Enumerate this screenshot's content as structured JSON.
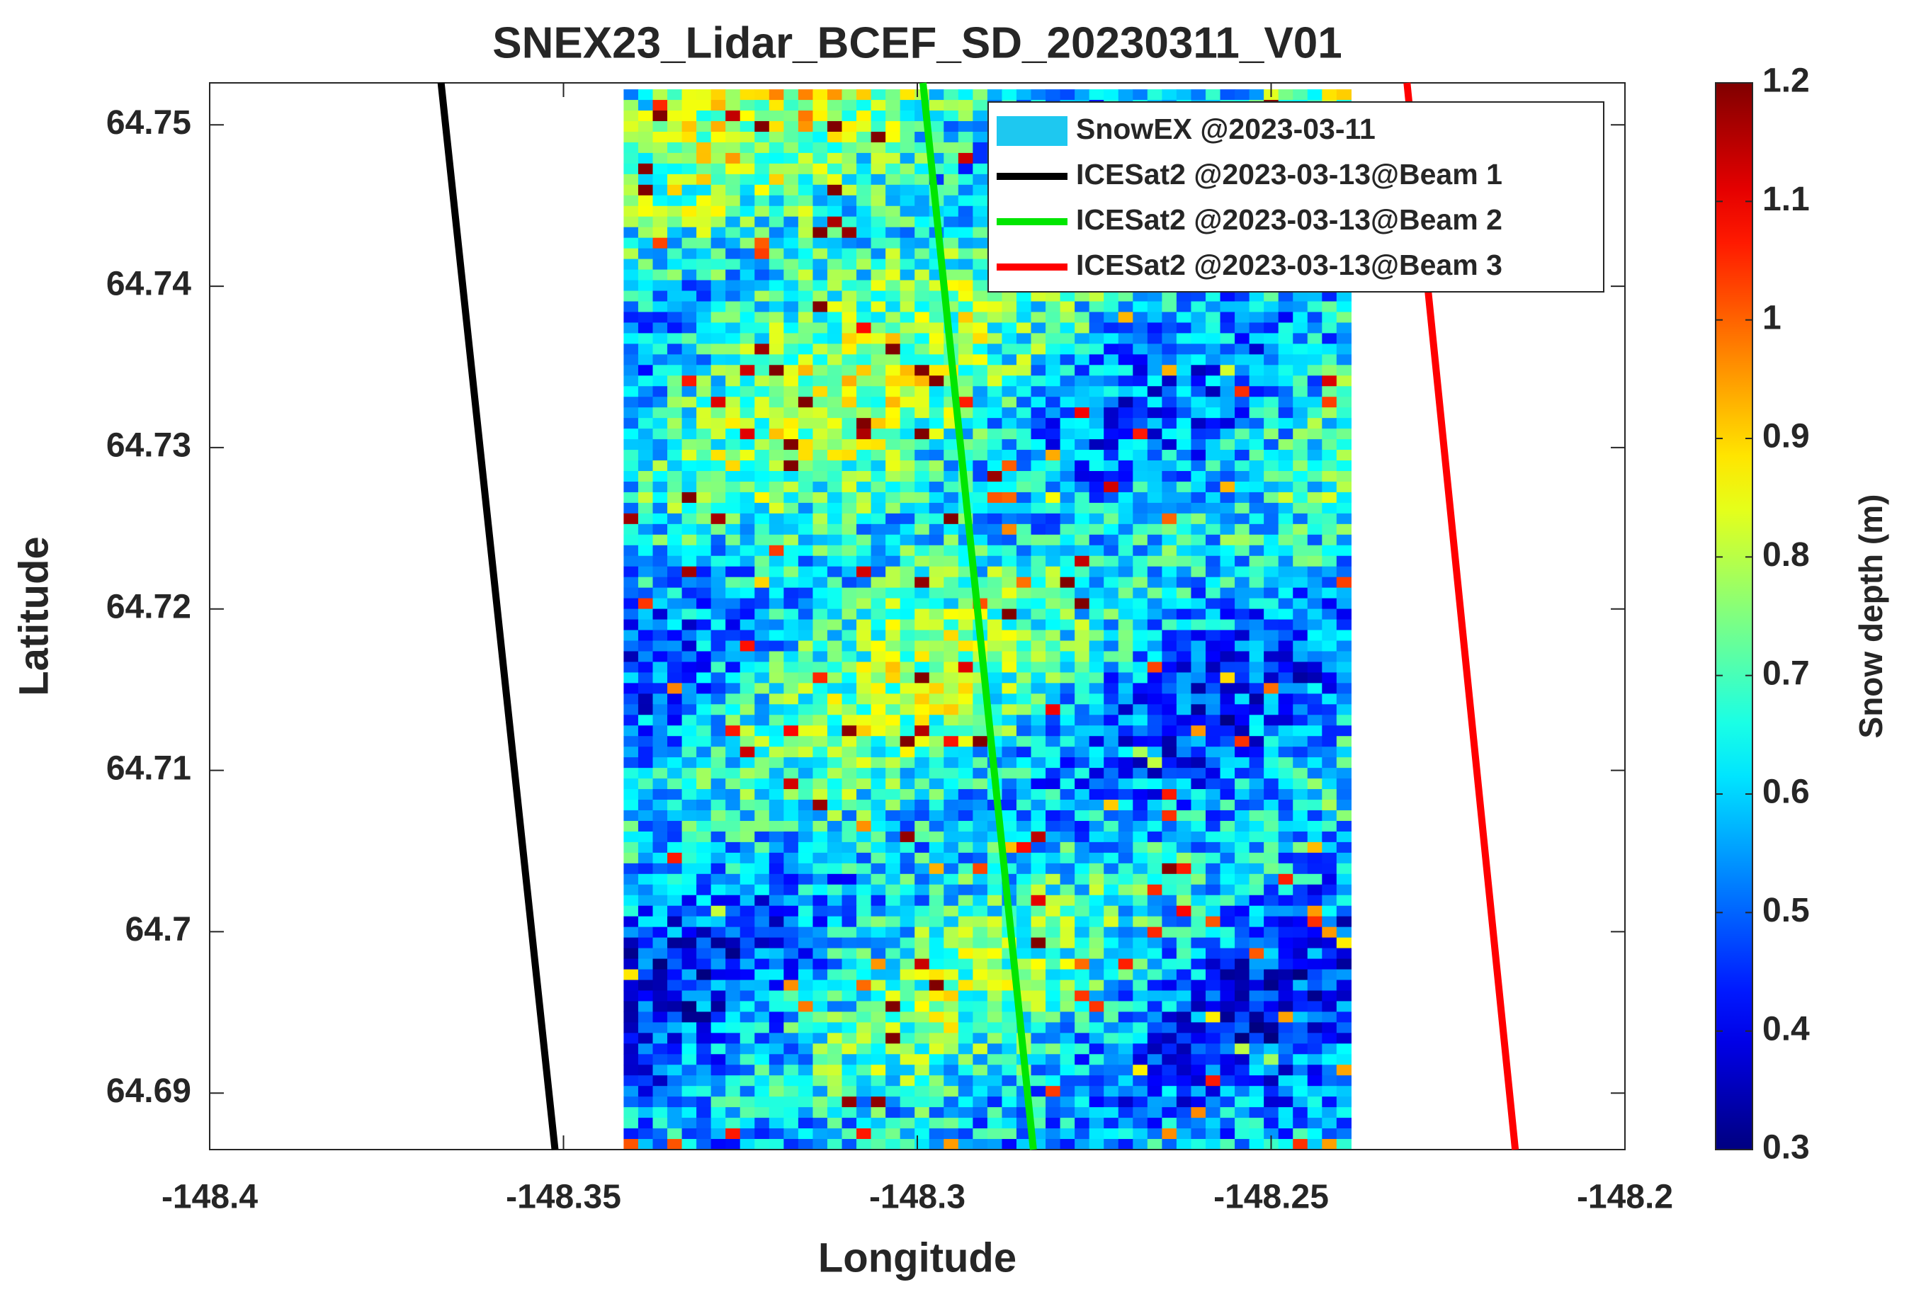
{
  "chart_data": {
    "type": "line",
    "title": "SNEX23_Lidar_BCEF_SD_20230311_V01",
    "x_label": "Longitude",
    "y_label": "Latitude",
    "xlim": [
      -148.4,
      -148.2
    ],
    "xticks": [
      -148.4,
      -148.35,
      -148.3,
      -148.25,
      -148.2
    ],
    "ylim": [
      64.6865,
      64.7526
    ],
    "yticks": [
      64.69,
      64.7,
      64.71,
      64.72,
      64.73,
      64.74,
      64.75
    ],
    "raster": {
      "name": "SnowEX @2023-03-11",
      "color": "#1ec8f0",
      "xlim": [
        -148.3415,
        -148.2387
      ],
      "ylim": [
        64.6865,
        64.7522
      ]
    },
    "series": [
      {
        "name": "ICESat2 @2023-03-13@Beam 1",
        "color": "#000000",
        "x": [
          -148.3673,
          -148.3512
        ],
        "values": [
          64.7526,
          64.6865
        ]
      },
      {
        "name": "ICESat2 @2023-03-13@Beam 2",
        "color": "#00e600",
        "x": [
          -148.2992,
          -148.2836
        ],
        "values": [
          64.7526,
          64.6865
        ]
      },
      {
        "name": "ICESat2 @2023-03-13@Beam 3",
        "color": "#ff0000",
        "x": [
          -148.2308,
          -148.2155
        ],
        "values": [
          64.7526,
          64.6865
        ]
      }
    ],
    "colorbar": {
      "label": "Snow depth (m)",
      "colormap": "jet",
      "clim": [
        0.3,
        1.2
      ],
      "ticks": [
        0.3,
        0.4,
        0.5,
        0.6,
        0.7,
        0.8,
        0.9,
        1,
        1.1,
        1.2
      ]
    }
  }
}
